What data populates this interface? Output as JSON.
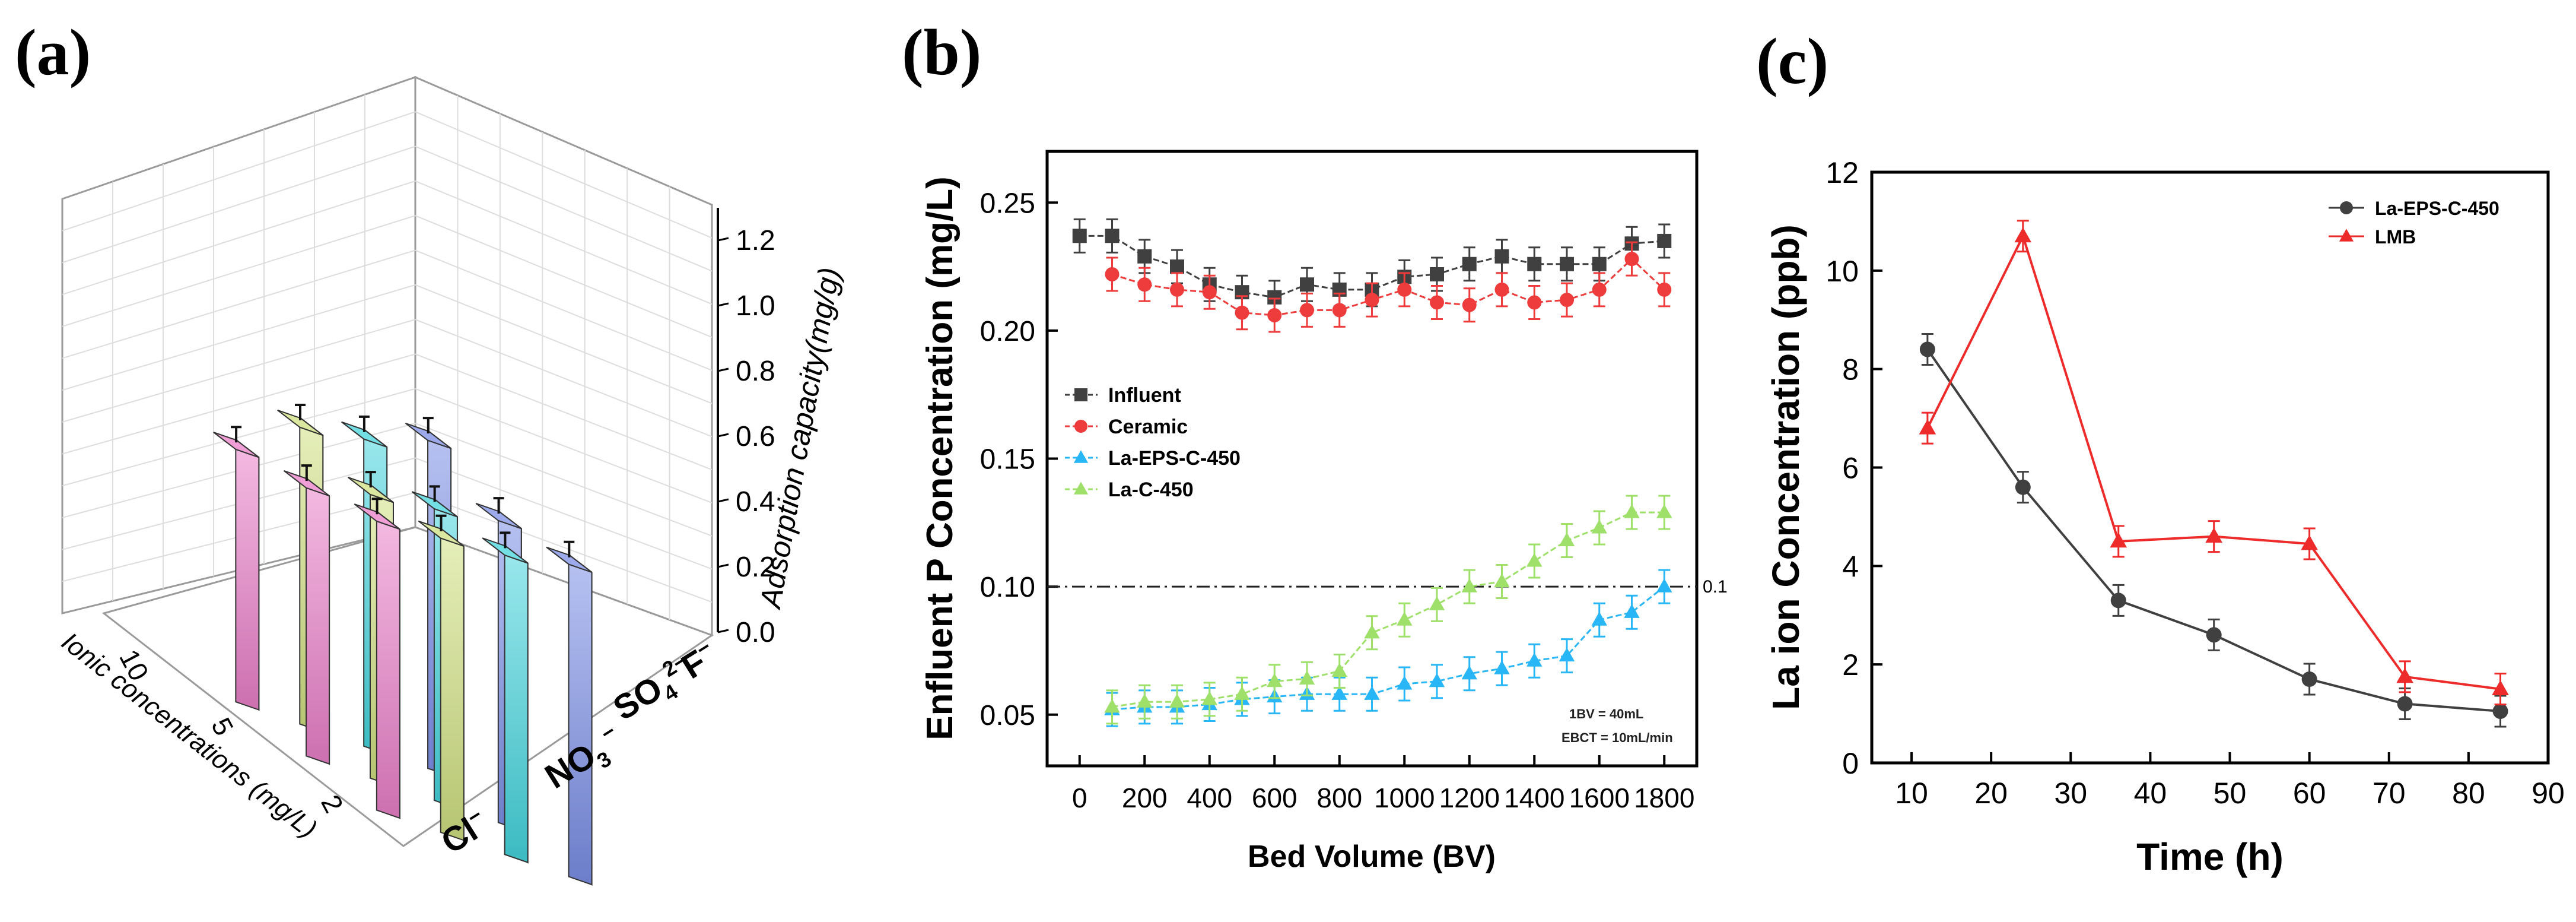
{
  "chart_data": [
    {
      "panel": "(a)",
      "type": "bar3d",
      "zlabel": "Adsorption capacity(mg/g)",
      "zticks": [
        "0.0",
        "0.2",
        "0.4",
        "0.6",
        "0.8",
        "1.0",
        "1.2"
      ],
      "zlim": [
        0,
        1.3
      ],
      "ylabel": "Ionic concentrations (mg/L)",
      "concentrations": [
        "10",
        "5",
        "2"
      ],
      "ions": [
        {
          "base": "Cl",
          "sup": "−",
          "sub": ""
        },
        {
          "base": "NO",
          "sub": "3",
          "sup": " −"
        },
        {
          "base": "SO",
          "sub": "4",
          "sup": "2−"
        },
        {
          "base": "F",
          "sub": "",
          "sup": "−"
        }
      ],
      "values": [
        [
          0.97,
          1.14,
          1.18,
          1.26
        ],
        [
          1.03,
          1.09,
          1.12,
          1.16
        ],
        [
          1.11,
          1.13,
          1.15,
          1.2
        ]
      ],
      "colors": [
        "#e97fc8",
        "#cfe080",
        "#44d4dc",
        "#7b8ee6"
      ]
    },
    {
      "panel": "(b)",
      "type": "line",
      "xlabel": "Bed Volume (BV)",
      "ylabel": "Enfluent P Concentration (mg/L)",
      "xlim": [
        -100,
        1900
      ],
      "ylim": [
        0.03,
        0.27
      ],
      "xticks": [
        "0",
        "200",
        "400",
        "600",
        "800",
        "1000",
        "1200",
        "1400",
        "1600",
        "1800"
      ],
      "yticks": [
        "0.05",
        "0.10",
        "0.15",
        "0.20",
        "0.25"
      ],
      "reference_line": {
        "y": 0.1,
        "label": "0.1"
      },
      "annotations": [
        "1BV = 40mL",
        "EBCT = 10mL/min"
      ],
      "series": [
        {
          "name": "Influent",
          "color": "#404040",
          "marker": "square",
          "x": [
            0,
            100,
            200,
            300,
            400,
            500,
            600,
            700,
            800,
            900,
            1000,
            1100,
            1200,
            1300,
            1400,
            1500,
            1600,
            1700,
            1800
          ],
          "y": [
            0.237,
            0.237,
            0.229,
            0.225,
            0.218,
            0.215,
            0.213,
            0.218,
            0.216,
            0.216,
            0.221,
            0.222,
            0.226,
            0.229,
            0.226,
            0.226,
            0.226,
            0.234,
            0.235
          ]
        },
        {
          "name": "Ceramic",
          "color": "#ee3b3b",
          "marker": "circle",
          "x": [
            100,
            200,
            300,
            400,
            500,
            600,
            700,
            800,
            900,
            1000,
            1100,
            1200,
            1300,
            1400,
            1500,
            1600,
            1700,
            1800
          ],
          "y": [
            0.222,
            0.218,
            0.216,
            0.215,
            0.207,
            0.206,
            0.208,
            0.208,
            0.212,
            0.216,
            0.211,
            0.21,
            0.216,
            0.211,
            0.212,
            0.216,
            0.228,
            0.216
          ]
        },
        {
          "name": "La-EPS-C-450",
          "color": "#29b6f6",
          "marker": "triangle",
          "x": [
            100,
            200,
            300,
            400,
            500,
            600,
            700,
            800,
            900,
            1000,
            1100,
            1200,
            1300,
            1400,
            1500,
            1600,
            1700,
            1800
          ],
          "y": [
            0.052,
            0.053,
            0.053,
            0.054,
            0.056,
            0.057,
            0.058,
            0.058,
            0.058,
            0.062,
            0.063,
            0.066,
            0.068,
            0.071,
            0.073,
            0.087,
            0.09,
            0.1
          ]
        },
        {
          "name": "La-C-450",
          "color": "#9ee06a",
          "marker": "triangle",
          "x": [
            100,
            200,
            300,
            400,
            500,
            600,
            700,
            800,
            900,
            1000,
            1100,
            1200,
            1300,
            1400,
            1500,
            1600,
            1700,
            1800
          ],
          "y": [
            0.053,
            0.055,
            0.055,
            0.056,
            0.058,
            0.063,
            0.064,
            0.067,
            0.082,
            0.087,
            0.093,
            0.1,
            0.102,
            0.11,
            0.118,
            0.123,
            0.129,
            0.129
          ]
        }
      ]
    },
    {
      "panel": "(c)",
      "type": "line",
      "xlabel": "Time (h)",
      "ylabel": "La ion Concentration (ppb)",
      "xlim": [
        5,
        90
      ],
      "ylim": [
        0,
        12
      ],
      "xticks": [
        "10",
        "20",
        "30",
        "40",
        "50",
        "60",
        "70",
        "80",
        "90"
      ],
      "yticks": [
        "0",
        "2",
        "4",
        "6",
        "8",
        "10",
        "12"
      ],
      "series": [
        {
          "name": "La-EPS-C-450",
          "color": "#404040",
          "marker": "circle",
          "x": [
            12,
            24,
            36,
            48,
            60,
            72,
            84
          ],
          "y": [
            8.4,
            5.6,
            3.3,
            2.6,
            1.7,
            1.2,
            1.05
          ]
        },
        {
          "name": "LMB",
          "color": "#ee2b2b",
          "marker": "triangle",
          "x": [
            12,
            24,
            36,
            48,
            60,
            72,
            84
          ],
          "y": [
            6.8,
            10.7,
            4.5,
            4.6,
            4.45,
            1.75,
            1.5
          ]
        }
      ]
    }
  ]
}
